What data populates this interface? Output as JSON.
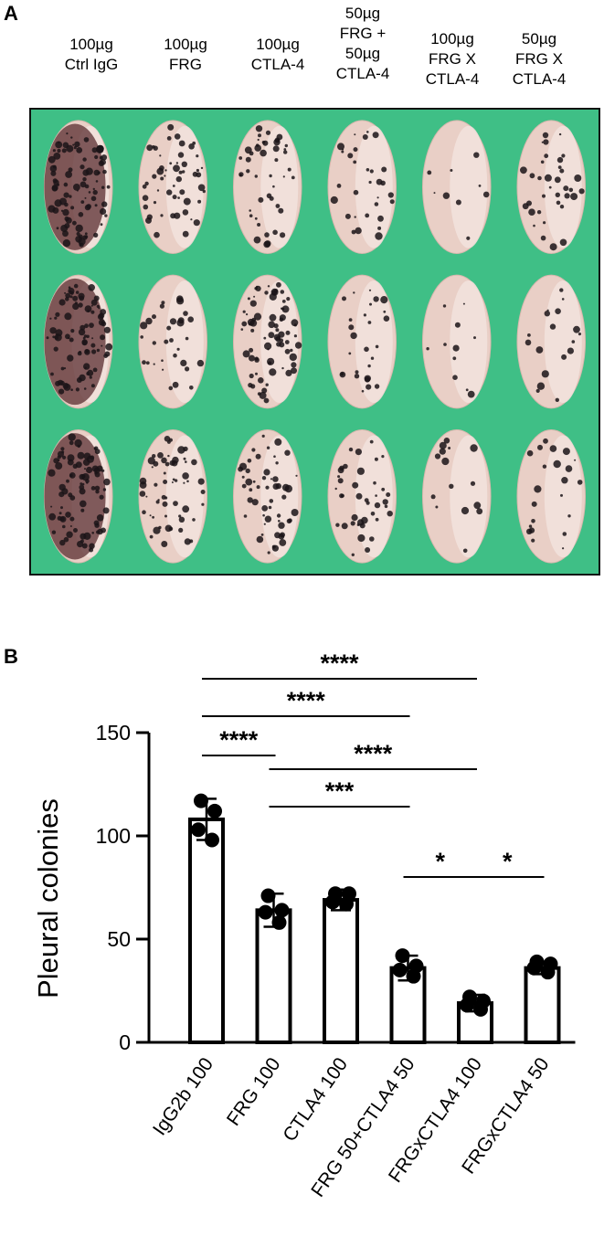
{
  "panel_a": {
    "letter": "A",
    "column_labels": [
      [
        "100µg",
        "Ctrl IgG"
      ],
      [
        "100µg",
        "FRG"
      ],
      [
        "100µg",
        "CTLA-4"
      ],
      [
        "50µg",
        "FRG +",
        "50µg",
        "CTLA-4"
      ],
      [
        "100µg",
        "FRG X",
        "CTLA-4"
      ],
      [
        "50µg",
        "FRG X",
        "CTLA-4"
      ]
    ],
    "photo": {
      "background_color": "#3fbf86",
      "rows": 3,
      "columns": 6,
      "spot_density": [
        [
          1.0,
          0.55,
          0.45,
          0.3,
          0.05,
          0.35
        ],
        [
          1.0,
          0.3,
          0.8,
          0.25,
          0.08,
          0.15
        ],
        [
          0.95,
          0.6,
          0.55,
          0.4,
          0.12,
          0.2
        ]
      ]
    }
  },
  "panel_b": {
    "letter": "B"
  },
  "chart_data": {
    "type": "bar",
    "ylabel": "Pleural colonies",
    "ylim": [
      0,
      150
    ],
    "yticks": [
      0,
      50,
      100,
      150
    ],
    "categories": [
      "IgG2b 100",
      "FRG 100",
      "CTLA4 100",
      "FRG 50+CTLA4 50",
      "FRGxCTLA4 100",
      "FRGxCTLA4 50"
    ],
    "values": [
      108,
      64,
      69,
      36,
      19,
      36
    ],
    "errors": [
      10,
      8,
      5,
      6,
      4,
      3
    ],
    "points": [
      [
        117,
        112,
        103,
        98
      ],
      [
        71,
        64,
        63,
        58
      ],
      [
        72,
        72,
        68,
        67
      ],
      [
        42,
        37,
        35,
        32
      ],
      [
        22,
        20,
        18,
        16
      ],
      [
        39,
        38,
        36,
        34
      ]
    ],
    "bar_fill": "#ffffff",
    "bar_stroke": "#000000",
    "significance": [
      {
        "from": 0,
        "to": 4,
        "label": "****"
      },
      {
        "from": 0,
        "to": 3,
        "label": "****"
      },
      {
        "from": 0,
        "to": 1,
        "label": "****"
      },
      {
        "from": 1,
        "to": 4,
        "label": "****"
      },
      {
        "from": 1,
        "to": 3,
        "label": "***"
      },
      {
        "from": 3,
        "to": 4,
        "label": "*"
      },
      {
        "from": 4,
        "to": 5,
        "label": "*"
      }
    ]
  }
}
